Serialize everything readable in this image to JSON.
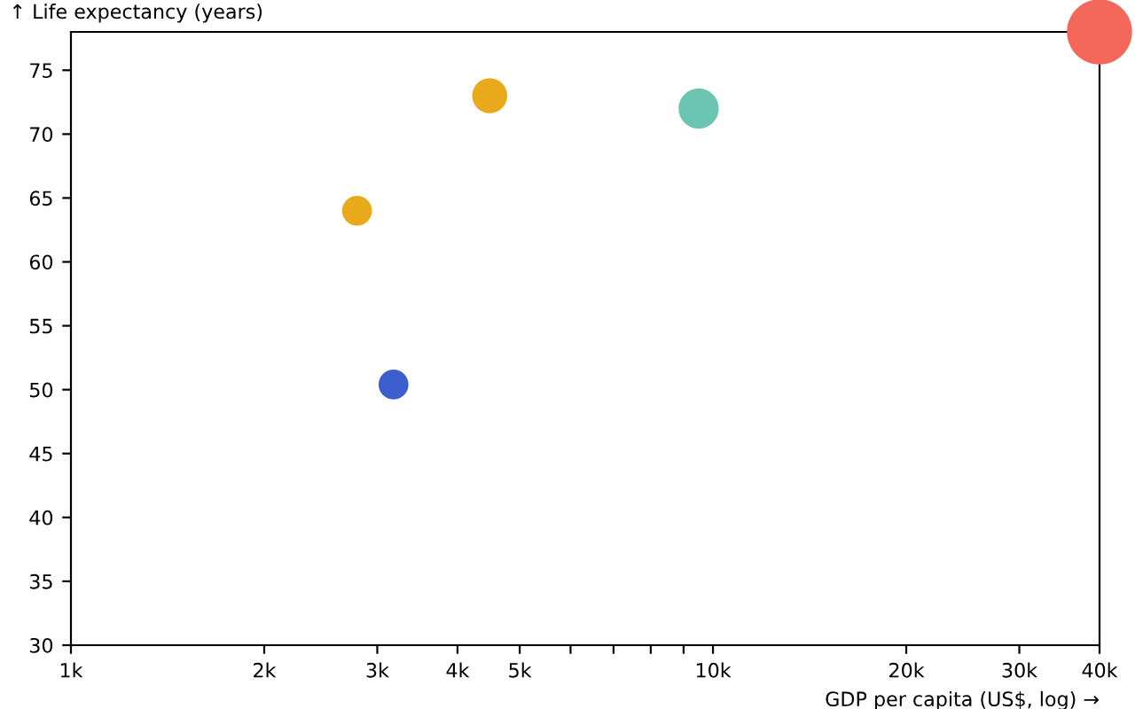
{
  "chart_data": {
    "type": "bubble",
    "xlabel": "GDP per capita (US$, log) →",
    "ylabel": "↑ Life expectancy (years)",
    "x": [
      2790,
      3180,
      4490,
      9500,
      40000
    ],
    "values": [
      64,
      50.4,
      73,
      72,
      78
    ],
    "sizes": [
      0.21,
      0.21,
      0.29,
      0.38,
      1
    ],
    "colors": [
      "#e8a91b",
      "#3b5fcc",
      "#e8a91b",
      "#6cc5b0",
      "#f4685c"
    ],
    "log": "x",
    "xlim": [
      1000,
      40000
    ],
    "xticks": [
      {
        "value": 1000,
        "label": "1k"
      },
      {
        "value": 2000,
        "label": "2k"
      },
      {
        "value": 3000,
        "label": "3k"
      },
      {
        "value": 4000,
        "label": "4k"
      },
      {
        "value": 5000,
        "label": "5k"
      },
      {
        "value": 6000,
        "label": null
      },
      {
        "value": 7000,
        "label": null
      },
      {
        "value": 8000,
        "label": null
      },
      {
        "value": 9000,
        "label": null
      },
      {
        "value": 10000,
        "label": "10k"
      },
      {
        "value": 20000,
        "label": "20k"
      },
      {
        "value": 30000,
        "label": "30k"
      },
      {
        "value": 40000,
        "label": "40k"
      }
    ],
    "ylim": [
      30,
      78
    ],
    "yticks": [
      30,
      35,
      40,
      45,
      50,
      55,
      60,
      65,
      70,
      75
    ],
    "grid": false,
    "marker": "circle"
  }
}
